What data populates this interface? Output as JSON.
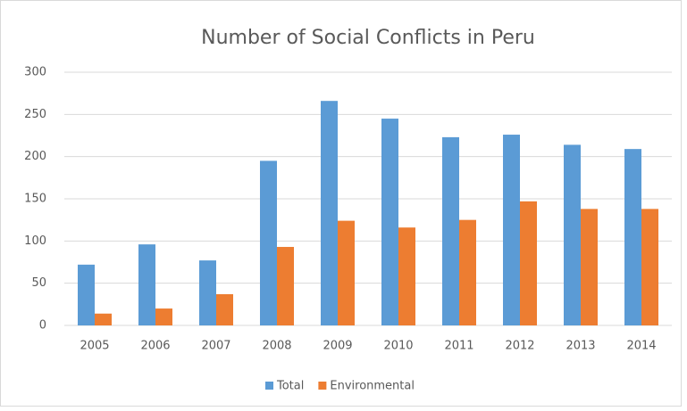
{
  "chart_data": {
    "type": "bar",
    "title": "Number of Social Conflicts in Peru",
    "categories": [
      "2005",
      "2006",
      "2007",
      "2008",
      "2009",
      "2010",
      "2011",
      "2012",
      "2013",
      "2014"
    ],
    "series": [
      {
        "name": "Total",
        "color": "#5b9bd5",
        "values": [
          72,
          96,
          77,
          195,
          266,
          245,
          223,
          226,
          214,
          209
        ]
      },
      {
        "name": "Environmental",
        "color": "#ed7d31",
        "values": [
          14,
          20,
          37,
          93,
          124,
          116,
          125,
          147,
          138,
          138
        ]
      }
    ],
    "ylim": [
      0,
      300
    ],
    "yticks": [
      0,
      50,
      100,
      150,
      200,
      250,
      300
    ],
    "grid": true,
    "legend": "bottom"
  }
}
